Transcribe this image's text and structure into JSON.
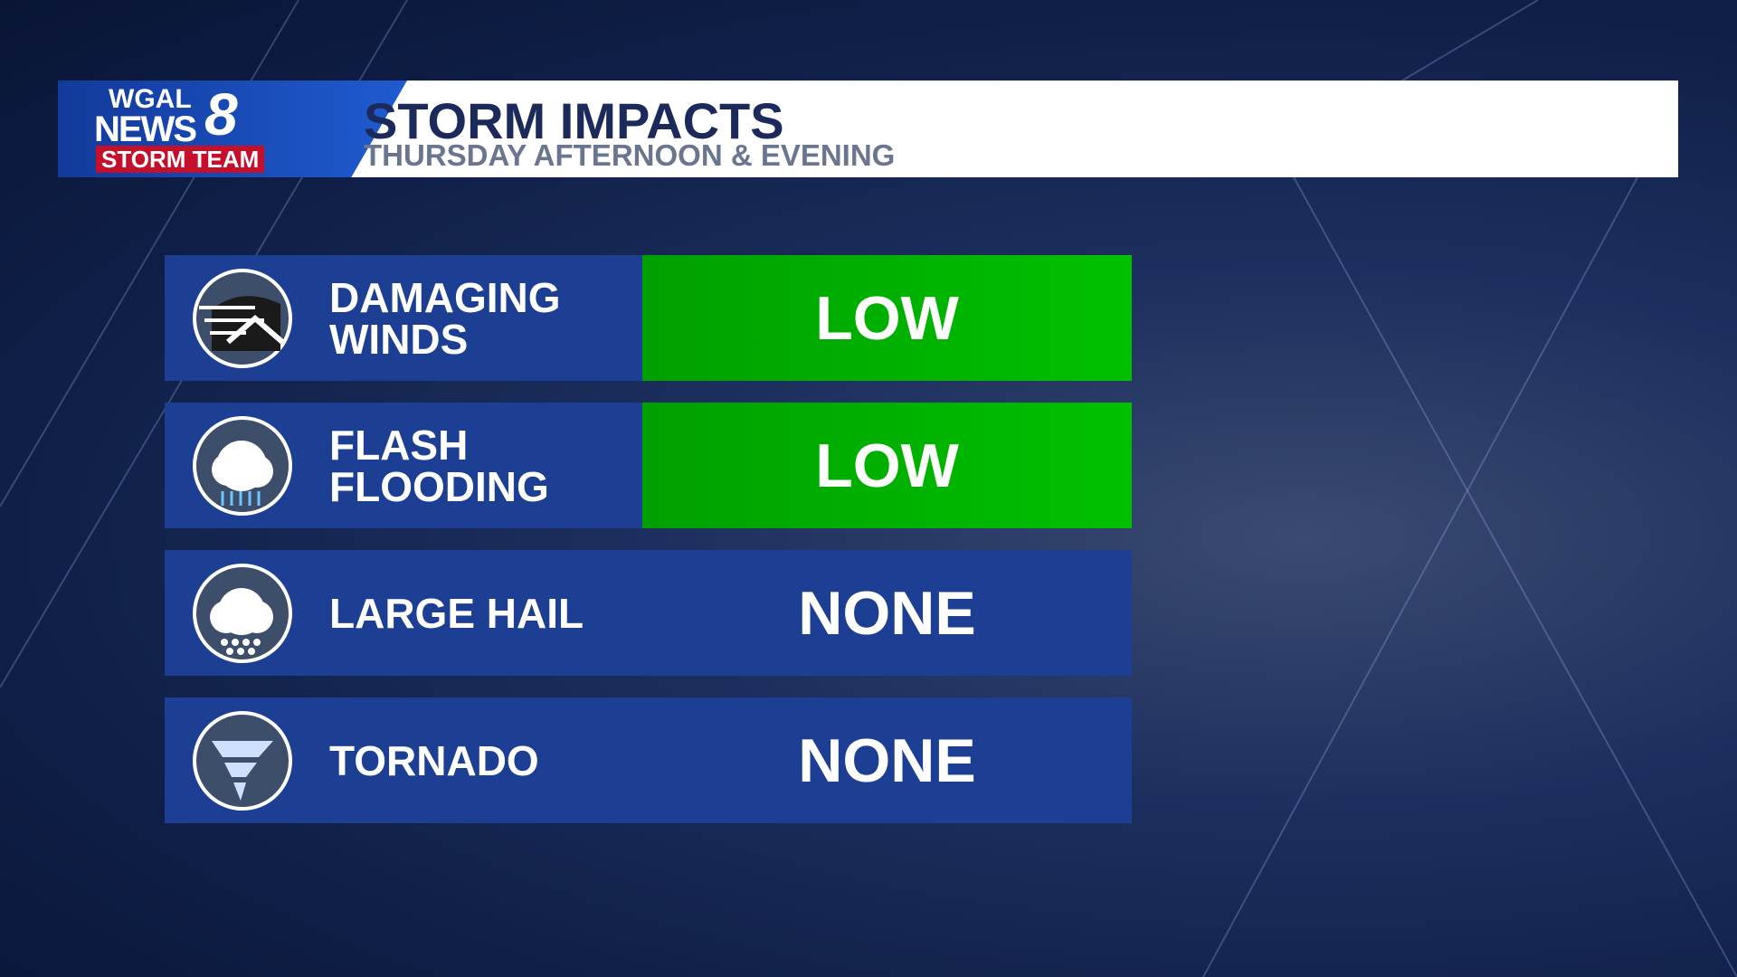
{
  "header": {
    "logo": {
      "line1": "WGAL",
      "line2": "NEWS",
      "number": "8",
      "tag": "STORM TEAM"
    },
    "title": "STORM IMPACTS",
    "subtitle": "THURSDAY AFTERNOON & EVENING"
  },
  "rows": [
    {
      "label": [
        "DAMAGING",
        "WINDS"
      ],
      "level": "LOW",
      "color": "#00a000"
    },
    {
      "label": [
        "FLASH",
        "FLOODING"
      ],
      "level": "LOW",
      "color": "#00a000"
    },
    {
      "label": [
        "LARGE HAIL"
      ],
      "level": "NONE",
      "color": "#1c3f94"
    },
    {
      "label": [
        "TORNADO"
      ],
      "level": "NONE",
      "color": "#1c3f94"
    }
  ]
}
